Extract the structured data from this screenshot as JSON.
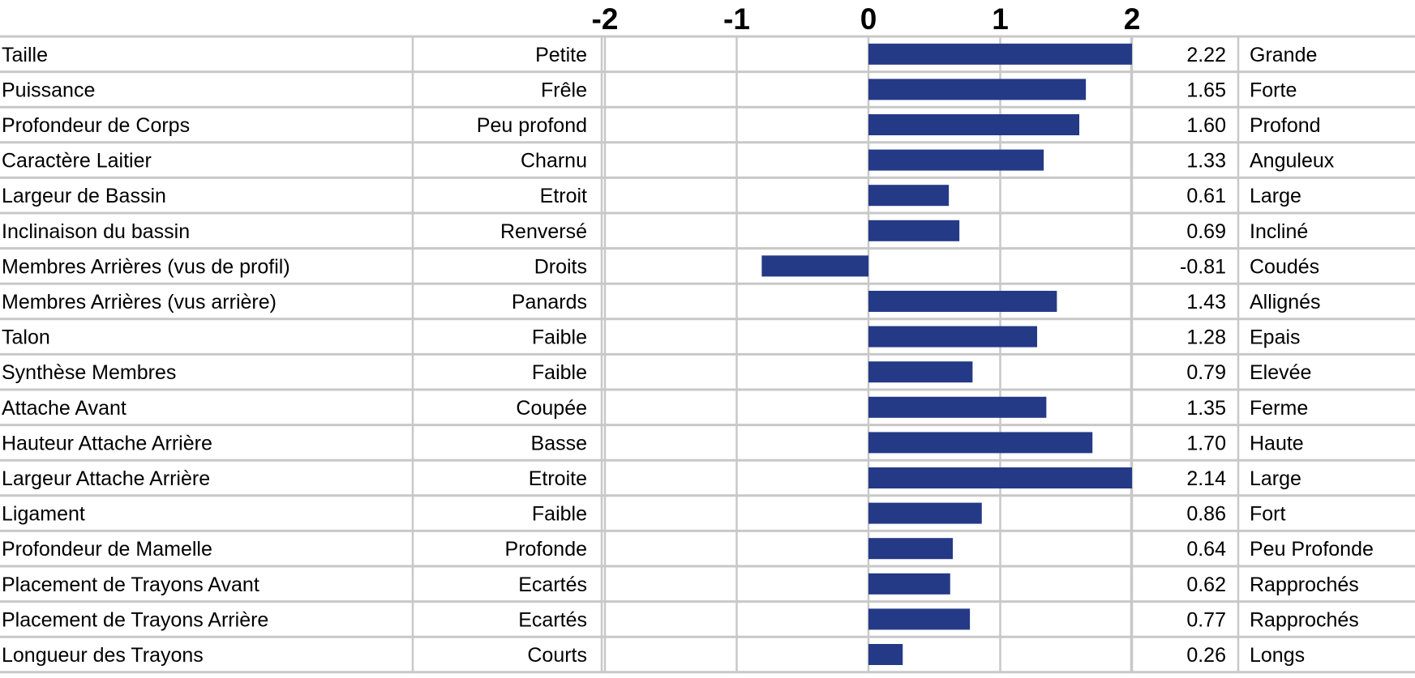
{
  "chart_data": {
    "type": "bar",
    "orientation": "horizontal",
    "xlim": [
      -2,
      2
    ],
    "x_ticks": [
      "-2",
      "-1",
      "0",
      "1",
      "2"
    ],
    "grid": true,
    "bar_color": "#243a87",
    "grid_color": "#c8c8c8",
    "rows": [
      {
        "trait": "Taille",
        "low": "Petite",
        "value": 2.22,
        "value_label": "2.22",
        "high": "Grande"
      },
      {
        "trait": "Puissance",
        "low": "Frêle",
        "value": 1.65,
        "value_label": "1.65",
        "high": "Forte"
      },
      {
        "trait": "Profondeur de Corps",
        "low": "Peu profond",
        "value": 1.6,
        "value_label": "1.60",
        "high": "Profond"
      },
      {
        "trait": "Caractère Laitier",
        "low": "Charnu",
        "value": 1.33,
        "value_label": "1.33",
        "high": "Anguleux"
      },
      {
        "trait": "Largeur de Bassin",
        "low": "Etroit",
        "value": 0.61,
        "value_label": "0.61",
        "high": "Large"
      },
      {
        "trait": "Inclinaison du bassin",
        "low": "Renversé",
        "value": 0.69,
        "value_label": "0.69",
        "high": "Incliné"
      },
      {
        "trait": "Membres Arrières (vus de profil)",
        "low": "Droits",
        "value": -0.81,
        "value_label": "-0.81",
        "high": "Coudés"
      },
      {
        "trait": "Membres Arrières (vus arrière)",
        "low": "Panards",
        "value": 1.43,
        "value_label": "1.43",
        "high": "Allignés"
      },
      {
        "trait": "Talon",
        "low": "Faible",
        "value": 1.28,
        "value_label": "1.28",
        "high": "Epais"
      },
      {
        "trait": "Synthèse Membres",
        "low": "Faible",
        "value": 0.79,
        "value_label": "0.79",
        "high": "Elevée"
      },
      {
        "trait": "Attache Avant",
        "low": "Coupée",
        "value": 1.35,
        "value_label": "1.35",
        "high": "Ferme"
      },
      {
        "trait": "Hauteur Attache Arrière",
        "low": "Basse",
        "value": 1.7,
        "value_label": "1.70",
        "high": "Haute"
      },
      {
        "trait": "Largeur Attache Arrière",
        "low": "Etroite",
        "value": 2.14,
        "value_label": "2.14",
        "high": "Large"
      },
      {
        "trait": "Ligament",
        "low": "Faible",
        "value": 0.86,
        "value_label": "0.86",
        "high": "Fort"
      },
      {
        "trait": "Profondeur de Mamelle",
        "low": "Profonde",
        "value": 0.64,
        "value_label": "0.64",
        "high": "Peu Profonde"
      },
      {
        "trait": "Placement de Trayons Avant",
        "low": "Ecartés",
        "value": 0.62,
        "value_label": "0.62",
        "high": "Rapprochés"
      },
      {
        "trait": "Placement de Trayons Arrière",
        "low": "Ecartés",
        "value": 0.77,
        "value_label": "0.77",
        "high": "Rapprochés"
      },
      {
        "trait": "Longueur des Trayons",
        "low": "Courts",
        "value": 0.26,
        "value_label": "0.26",
        "high": "Longs"
      }
    ]
  }
}
